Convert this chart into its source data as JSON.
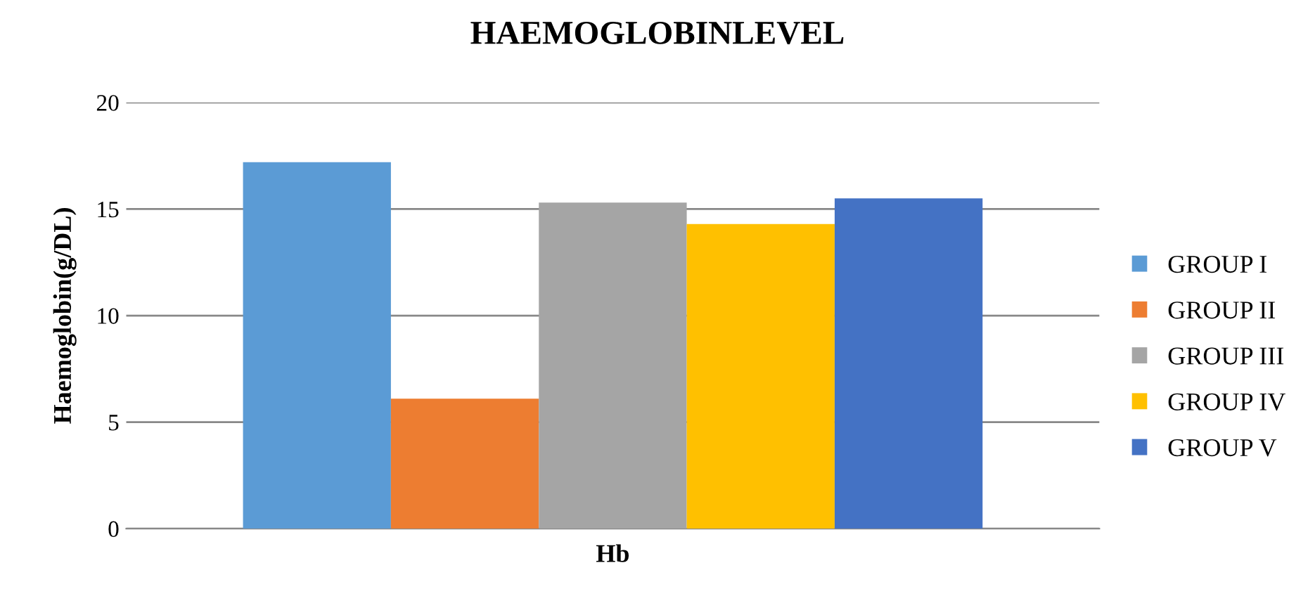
{
  "chart_data": {
    "type": "bar",
    "title": "HAEMOGLOBINLEVEL",
    "ylabel": "Haemoglobin(g/DL)",
    "categories": [
      "Hb"
    ],
    "series": [
      {
        "name": "GROUP I",
        "color": "#5b9bd5",
        "values": [
          17.2
        ]
      },
      {
        "name": "GROUP II",
        "color": "#ed7d31",
        "values": [
          6.1
        ]
      },
      {
        "name": "GROUP III",
        "color": "#a5a5a5",
        "values": [
          15.3
        ]
      },
      {
        "name": "GROUP IV",
        "color": "#ffc000",
        "values": [
          14.3
        ]
      },
      {
        "name": "GROUP V",
        "color": "#4472c4",
        "values": [
          15.5
        ]
      }
    ],
    "ylim": [
      0,
      20
    ],
    "yticks": [
      0,
      5,
      10,
      15,
      20
    ],
    "grid": "y",
    "legend": "right"
  }
}
